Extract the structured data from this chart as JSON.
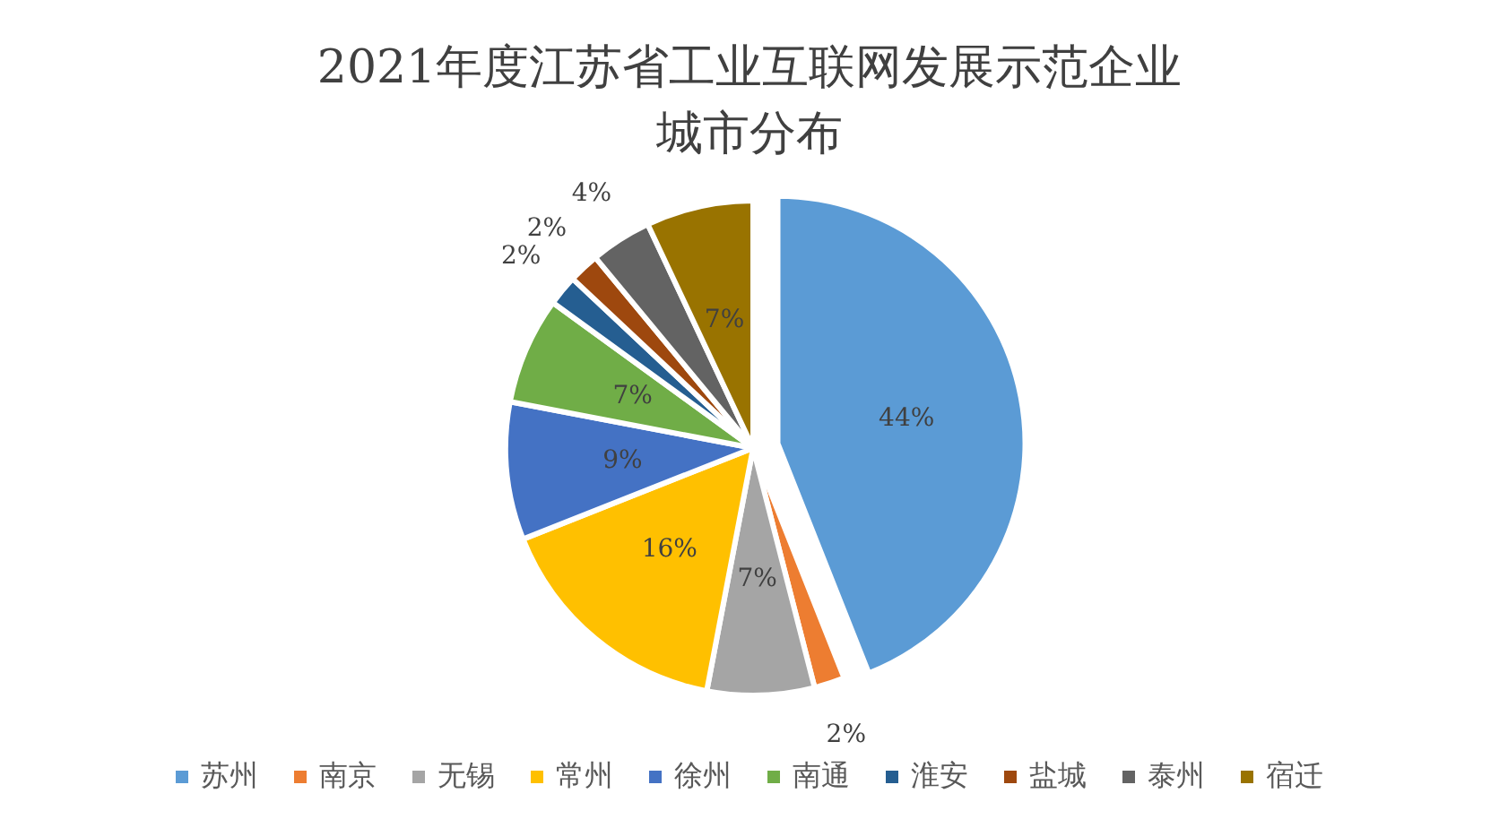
{
  "chart_data": {
    "type": "pie",
    "title": "2021年度江苏省工业互联网发展示范企业城市分布",
    "categories": [
      "苏州",
      "南京",
      "无锡",
      "常州",
      "徐州",
      "南通",
      "淮安",
      "盐城",
      "泰州",
      "宿迁"
    ],
    "values": [
      44,
      2,
      7,
      16,
      9,
      7,
      2,
      2,
      4,
      7
    ],
    "colors": [
      "#5b9bd5",
      "#ed7d31",
      "#a5a5a5",
      "#ffc000",
      "#4472c4",
      "#70ad47",
      "#255e91",
      "#9e480e",
      "#636363",
      "#997300"
    ],
    "value_labels": [
      "44%",
      "2%",
      "7%",
      "16%",
      "9%",
      "7%",
      "2%",
      "2%",
      "4%",
      "7%"
    ],
    "legend": "bottom"
  }
}
